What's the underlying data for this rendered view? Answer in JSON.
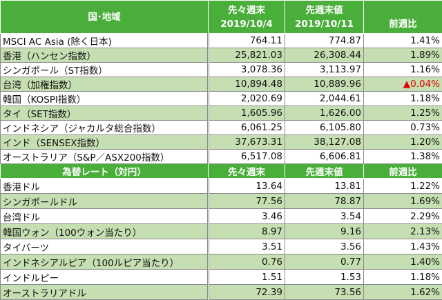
{
  "index_table": {
    "headers": {
      "region": "国･地域",
      "prev2_label": "先々週末",
      "prev2_date": "2019/10/4",
      "prev_label": "先週末値",
      "prev_date": "2019/10/11",
      "change": "前週比"
    },
    "rows": [
      {
        "name": "MSCI AC Asia (除く日本)",
        "prev2": "764.11",
        "prev": "774.87",
        "change": "1.41%"
      },
      {
        "name": "香港（ハンセン指数）",
        "prev2": "25,821.03",
        "prev": "26,308.44",
        "change": "1.89%"
      },
      {
        "name": "シンガポール（ST指数）",
        "prev2": "3,078.36",
        "prev": "3,113.97",
        "change": "1.16%"
      },
      {
        "name": "台湾（加権指数）",
        "prev2": "10,894.48",
        "prev": "10,889.96",
        "change": "▲0.04%",
        "negative": true
      },
      {
        "name": "韓国（KOSPI指数）",
        "prev2": "2,020.69",
        "prev": "2,044.61",
        "change": "1.18%"
      },
      {
        "name": "タイ（SET指数）",
        "prev2": "1,605.96",
        "prev": "1,626.00",
        "change": "1.25%"
      },
      {
        "name": "インドネシア（ジャカルタ総合指数）",
        "prev2": "6,061.25",
        "prev": "6,105.80",
        "change": "0.73%"
      },
      {
        "name": "インド（SENSEX指数）",
        "prev2": "37,673.31",
        "prev": "38,127.08",
        "change": "1.20%"
      },
      {
        "name": "オーストラリア（S&P／ASX200指数）",
        "prev2": "6,517.08",
        "prev": "6,606.81",
        "change": "1.38%"
      }
    ]
  },
  "fx_table": {
    "headers": {
      "region": "為替レート（対円）",
      "prev2_label": "先々週末",
      "prev_label": "先週末値",
      "change": "前週比"
    },
    "rows": [
      {
        "name": "香港ドル",
        "prev2": "13.64",
        "prev": "13.81",
        "change": "1.22%"
      },
      {
        "name": "シンガポールドル",
        "prev2": "77.56",
        "prev": "78.87",
        "change": "1.69%"
      },
      {
        "name": "台湾ドル",
        "prev2": "3.46",
        "prev": "3.54",
        "change": "2.29%"
      },
      {
        "name": "韓国ウォン（100ウォン当たり）",
        "prev2": "8.97",
        "prev": "9.16",
        "change": "2.13%"
      },
      {
        "name": "タイバーツ",
        "prev2": "3.51",
        "prev": "3.56",
        "change": "1.43%"
      },
      {
        "name": "インドネシアルピア（100ルピア当たり）",
        "prev2": "0.76",
        "prev": "0.77",
        "change": "1.40%"
      },
      {
        "name": "インドルピー",
        "prev2": "1.51",
        "prev": "1.53",
        "change": "1.18%"
      },
      {
        "name": "オーストラリアドル",
        "prev2": "72.39",
        "prev": "73.56",
        "change": "1.62%"
      }
    ]
  },
  "colors": {
    "header_bg": "#4aae3a",
    "alt_row_bg": "#c6dfb2",
    "negative": "#e00000"
  }
}
